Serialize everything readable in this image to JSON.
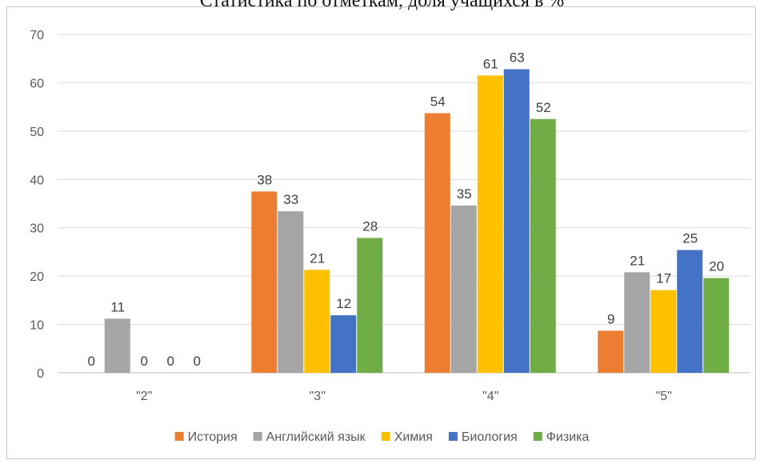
{
  "chart_data": {
    "type": "bar",
    "title": "Статистика по отметкам, доля учащихся в %",
    "categories": [
      "\"2\"",
      "\"3\"",
      "\"4\"",
      "\"5\""
    ],
    "series": [
      {
        "name": "История",
        "color": "#ED7D31",
        "values": [
          0,
          38,
          54,
          9
        ],
        "bar_values": [
          0,
          37.5,
          53.7,
          8.7
        ]
      },
      {
        "name": "Английский язык",
        "color": "#A5A5A5",
        "values": [
          11,
          33,
          35,
          21
        ],
        "bar_values": [
          11.2,
          33.4,
          34.6,
          20.8
        ]
      },
      {
        "name": "Химия",
        "color": "#FFC000",
        "values": [
          0,
          21,
          61,
          17
        ],
        "bar_values": [
          0,
          21.3,
          61.5,
          17.1
        ]
      },
      {
        "name": "Биология",
        "color": "#4472C4",
        "values": [
          0,
          12,
          63,
          25
        ],
        "bar_values": [
          0,
          11.9,
          62.8,
          25.4
        ]
      },
      {
        "name": "Физика",
        "color": "#70AD47",
        "values": [
          0,
          28,
          52,
          20
        ],
        "bar_values": [
          0,
          27.9,
          52.5,
          19.6
        ]
      }
    ],
    "ylim": [
      0,
      70
    ],
    "yticks": [
      "0",
      "10",
      "20",
      "30",
      "40",
      "50",
      "60",
      "70"
    ],
    "grid": true,
    "legend_position": "bottom"
  }
}
